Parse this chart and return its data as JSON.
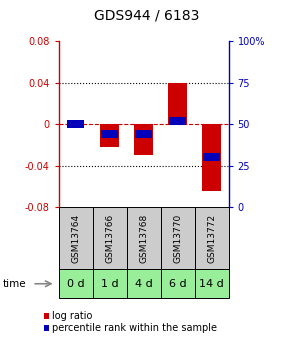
{
  "title": "GDS944 / 6183",
  "samples": [
    "GSM13764",
    "GSM13766",
    "GSM13768",
    "GSM13770",
    "GSM13772"
  ],
  "time_labels": [
    "0 d",
    "1 d",
    "4 d",
    "6 d",
    "14 d"
  ],
  "log_ratios": [
    0.0,
    -0.022,
    -0.03,
    0.04,
    -0.065
  ],
  "percentile_ranks": [
    0.5,
    0.44,
    0.44,
    0.52,
    0.3
  ],
  "ylim": [
    -0.08,
    0.08
  ],
  "yticks_left": [
    -0.08,
    -0.04,
    0,
    0.04,
    0.08
  ],
  "yticks_right_labels": [
    "0",
    "25",
    "50",
    "75",
    "100%"
  ],
  "bar_width": 0.55,
  "log_ratio_color": "#cc0000",
  "percentile_color": "#0000bb",
  "zero_line_color": "#cc0000",
  "bg_sample_labels": "#cccccc",
  "bg_time_labels": "#99ee99",
  "title_fontsize": 10,
  "tick_fontsize": 7,
  "label_fontsize": 7,
  "sample_label_fontsize": 6.5,
  "time_label_fontsize": 8
}
